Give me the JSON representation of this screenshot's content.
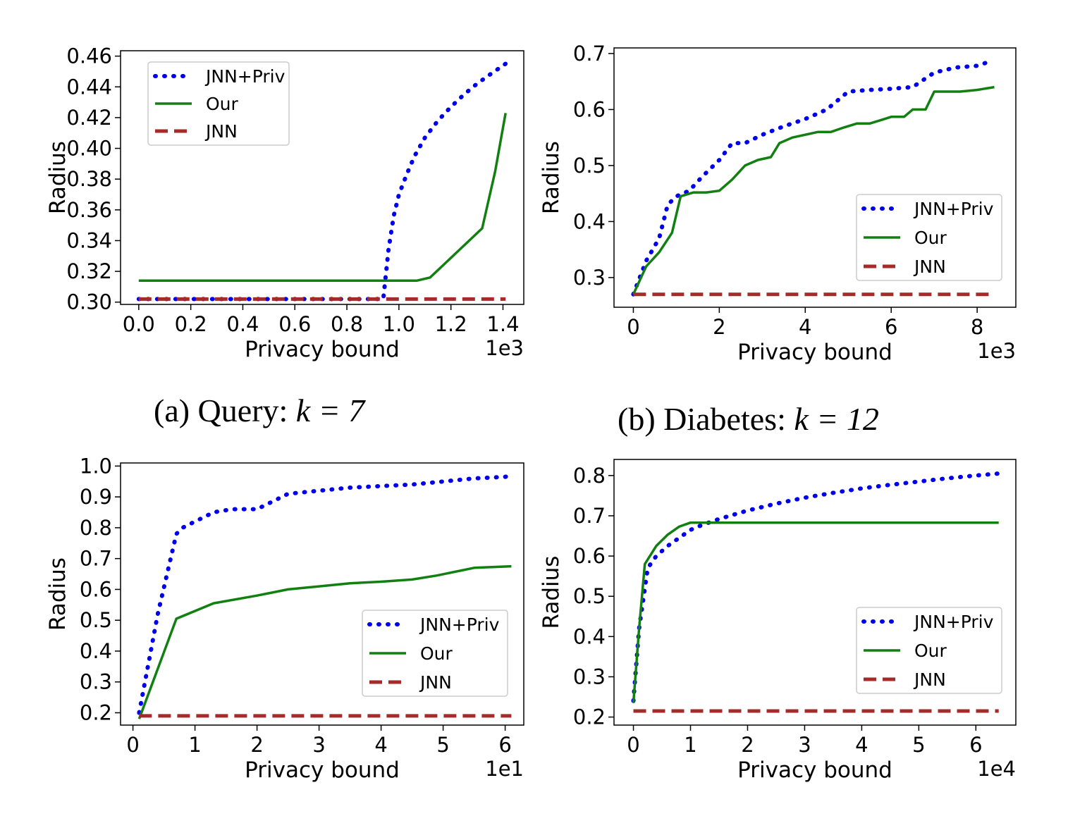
{
  "captions": [
    {
      "prefix": "(a) Query: ",
      "math": "k = 7"
    },
    {
      "prefix": "(b) Diabetes: ",
      "math": "k = 12"
    }
  ],
  "colors": {
    "jnn_priv": "#0000ee",
    "our": "#118011",
    "jnn": "#a52a2a"
  },
  "chart_data": [
    {
      "type": "line",
      "xlabel": "Privacy bound",
      "ylabel": "Radius",
      "x_exponent": "1e3",
      "xlim": [
        -0.07,
        1.48
      ],
      "ylim": [
        0.2985,
        0.4635
      ],
      "xticks": [
        0.0,
        0.2,
        0.4,
        0.6,
        0.8,
        1.0,
        1.2,
        1.4
      ],
      "xtick_labels": [
        "0.0",
        "0.2",
        "0.4",
        "0.6",
        "0.8",
        "1.0",
        "1.2",
        "1.4"
      ],
      "yticks": [
        0.3,
        0.32,
        0.34,
        0.36,
        0.38,
        0.4,
        0.42,
        0.44,
        0.46
      ],
      "ytick_labels": [
        "0.30",
        "0.32",
        "0.34",
        "0.36",
        "0.38",
        "0.40",
        "0.42",
        "0.44",
        "0.46"
      ],
      "legend_position": "upper left",
      "series": [
        {
          "name": "JNN+Priv",
          "style": "dotted",
          "color": "#0000ee",
          "x": [
            0,
            0.2,
            0.4,
            0.6,
            0.8,
            0.94,
            0.96,
            0.98,
            1.0,
            1.03,
            1.06,
            1.1,
            1.15,
            1.2,
            1.25,
            1.3,
            1.35,
            1.41
          ],
          "y": [
            0.302,
            0.302,
            0.302,
            0.302,
            0.302,
            0.302,
            0.334,
            0.356,
            0.37,
            0.383,
            0.395,
            0.407,
            0.418,
            0.427,
            0.435,
            0.442,
            0.448,
            0.455
          ]
        },
        {
          "name": "Our",
          "style": "solid",
          "color": "#118011",
          "x": [
            0,
            0.3,
            0.6,
            0.9,
            1.07,
            1.12,
            1.17,
            1.22,
            1.27,
            1.32,
            1.37,
            1.41
          ],
          "y": [
            0.314,
            0.314,
            0.314,
            0.314,
            0.314,
            0.316,
            0.324,
            0.332,
            0.34,
            0.348,
            0.385,
            0.423
          ]
        },
        {
          "name": "JNN",
          "style": "dashed",
          "color": "#a52a2a",
          "x": [
            0,
            1.41
          ],
          "y": [
            0.302,
            0.302
          ]
        }
      ]
    },
    {
      "type": "line",
      "xlabel": "Privacy bound",
      "ylabel": "Radius",
      "x_exponent": "1e3",
      "xlim": [
        -0.45,
        8.9
      ],
      "ylim": [
        0.247,
        0.71
      ],
      "xticks": [
        0,
        2,
        4,
        6,
        8
      ],
      "xtick_labels": [
        "0",
        "2",
        "4",
        "6",
        "8"
      ],
      "yticks": [
        0.3,
        0.4,
        0.5,
        0.6,
        0.7
      ],
      "ytick_labels": [
        "0.3",
        "0.4",
        "0.5",
        "0.6",
        "0.7"
      ],
      "legend_position": "lower right",
      "series": [
        {
          "name": "JNN+Priv",
          "style": "dotted",
          "color": "#0000ee",
          "x": [
            0,
            0.3,
            0.6,
            0.8,
            1.0,
            1.3,
            1.6,
            2.0,
            2.3,
            2.6,
            3.0,
            3.5,
            4.0,
            4.5,
            5.0,
            5.5,
            6.0,
            6.5,
            7.0,
            7.5,
            8.0,
            8.3
          ],
          "y": [
            0.27,
            0.33,
            0.37,
            0.43,
            0.445,
            0.455,
            0.48,
            0.51,
            0.54,
            0.54,
            0.555,
            0.57,
            0.583,
            0.6,
            0.632,
            0.635,
            0.637,
            0.64,
            0.666,
            0.675,
            0.678,
            0.686
          ]
        },
        {
          "name": "Our",
          "style": "solid",
          "color": "#118011",
          "x": [
            0,
            0.3,
            0.6,
            0.9,
            1.1,
            1.4,
            1.7,
            2.0,
            2.3,
            2.6,
            2.9,
            3.2,
            3.4,
            3.7,
            4.0,
            4.3,
            4.6,
            4.9,
            5.2,
            5.5,
            5.8,
            6.0,
            6.3,
            6.5,
            6.8,
            7.0,
            7.3,
            7.6,
            8.0,
            8.4
          ],
          "y": [
            0.27,
            0.32,
            0.345,
            0.38,
            0.445,
            0.452,
            0.452,
            0.455,
            0.475,
            0.5,
            0.51,
            0.515,
            0.54,
            0.55,
            0.555,
            0.56,
            0.56,
            0.568,
            0.575,
            0.575,
            0.582,
            0.587,
            0.587,
            0.6,
            0.6,
            0.632,
            0.632,
            0.632,
            0.635,
            0.64
          ]
        },
        {
          "name": "JNN",
          "style": "dashed",
          "color": "#a52a2a",
          "x": [
            0,
            8.4
          ],
          "y": [
            0.27,
            0.27
          ]
        }
      ]
    },
    {
      "type": "line",
      "xlabel": "Privacy bound",
      "ylabel": "Radius",
      "x_exponent": "1e1",
      "xlim": [
        -0.2,
        6.3
      ],
      "ylim": [
        0.16,
        1.01
      ],
      "xticks": [
        0,
        1,
        2,
        3,
        4,
        5,
        6
      ],
      "xtick_labels": [
        "0",
        "1",
        "2",
        "3",
        "4",
        "5",
        "6"
      ],
      "yticks": [
        0.2,
        0.3,
        0.4,
        0.5,
        0.6,
        0.7,
        0.8,
        0.9,
        1.0
      ],
      "ytick_labels": [
        "0.2",
        "0.3",
        "0.4",
        "0.5",
        "0.6",
        "0.7",
        "0.8",
        "0.9",
        "1.0"
      ],
      "legend_position": "lower right",
      "series": [
        {
          "name": "JNN+Priv",
          "style": "dotted",
          "color": "#0000ee",
          "x": [
            0.1,
            0.4,
            0.7,
            0.8,
            1.3,
            1.6,
            2.0,
            2.5,
            3.0,
            3.5,
            4.0,
            4.5,
            5.0,
            5.5,
            6.0,
            6.1
          ],
          "y": [
            0.2,
            0.52,
            0.78,
            0.8,
            0.85,
            0.86,
            0.86,
            0.91,
            0.92,
            0.93,
            0.935,
            0.94,
            0.95,
            0.96,
            0.965,
            0.97
          ]
        },
        {
          "name": "Our",
          "style": "solid",
          "color": "#118011",
          "x": [
            0.1,
            0.7,
            1.3,
            2.0,
            2.5,
            3.0,
            3.5,
            4.0,
            4.5,
            4.9,
            5.5,
            6.1
          ],
          "y": [
            0.18,
            0.505,
            0.555,
            0.58,
            0.6,
            0.61,
            0.62,
            0.625,
            0.632,
            0.645,
            0.67,
            0.675
          ]
        },
        {
          "name": "JNN",
          "style": "dashed",
          "color": "#a52a2a",
          "x": [
            0.1,
            6.1
          ],
          "y": [
            0.19,
            0.19
          ]
        }
      ]
    },
    {
      "type": "line",
      "xlabel": "Privacy bound",
      "ylabel": "Radius",
      "x_exponent": "1e4",
      "xlim": [
        -0.34,
        6.7
      ],
      "ylim": [
        0.18,
        0.84
      ],
      "xticks": [
        0,
        1,
        2,
        3,
        4,
        5,
        6
      ],
      "xtick_labels": [
        "0",
        "1",
        "2",
        "3",
        "4",
        "5",
        "6"
      ],
      "yticks": [
        0.2,
        0.3,
        0.4,
        0.5,
        0.6,
        0.7,
        0.8
      ],
      "ytick_labels": [
        "0.2",
        "0.3",
        "0.4",
        "0.5",
        "0.6",
        "0.7",
        "0.8"
      ],
      "legend_position": "lower right",
      "series": [
        {
          "name": "JNN+Priv",
          "style": "dotted",
          "color": "#0000ee",
          "x": [
            0,
            0.1,
            0.25,
            0.4,
            0.6,
            0.8,
            1.0,
            1.2,
            1.5,
            2.0,
            2.5,
            3.0,
            3.5,
            4.0,
            4.5,
            5.0,
            5.5,
            6.0,
            6.4
          ],
          "y": [
            0.24,
            0.42,
            0.57,
            0.6,
            0.625,
            0.645,
            0.665,
            0.677,
            0.692,
            0.713,
            0.73,
            0.745,
            0.757,
            0.768,
            0.777,
            0.785,
            0.793,
            0.8,
            0.805
          ]
        },
        {
          "name": "Our",
          "style": "solid",
          "color": "#118011",
          "x": [
            0,
            0.1,
            0.2,
            0.4,
            0.6,
            0.8,
            1.0,
            1.2,
            2.0,
            3.0,
            4.0,
            5.0,
            6.4
          ],
          "y": [
            0.235,
            0.42,
            0.58,
            0.625,
            0.653,
            0.673,
            0.683,
            0.683,
            0.683,
            0.683,
            0.683,
            0.683,
            0.683
          ]
        },
        {
          "name": "JNN",
          "style": "dashed",
          "color": "#a52a2a",
          "x": [
            0,
            6.4
          ],
          "y": [
            0.215,
            0.215
          ]
        }
      ]
    }
  ]
}
